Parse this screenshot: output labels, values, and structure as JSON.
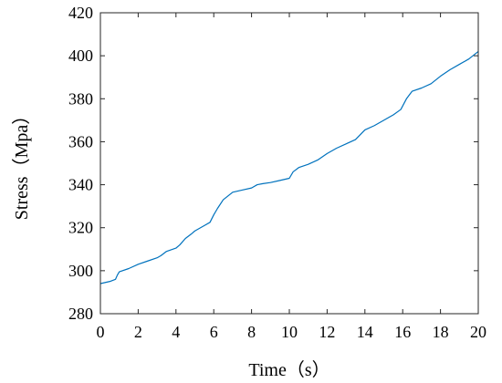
{
  "chart_data": {
    "type": "line",
    "title": "",
    "xlabel": "Time（s）",
    "ylabel": "Stress（Mpa）",
    "xlim": [
      0,
      20
    ],
    "ylim": [
      280,
      420
    ],
    "xticks": [
      0,
      2,
      4,
      6,
      8,
      10,
      12,
      14,
      16,
      18,
      20
    ],
    "yticks": [
      280,
      300,
      320,
      340,
      360,
      380,
      400,
      420
    ],
    "grid": false,
    "legend": "none",
    "series": [
      {
        "color": "#0072BD",
        "x": [
          0,
          0.5,
          0.8,
          0.9,
          1.0,
          1.5,
          2.0,
          2.5,
          3.0,
          3.2,
          3.5,
          4.0,
          4.2,
          4.5,
          4.8,
          5.0,
          5.5,
          5.8,
          6.0,
          6.2,
          6.5,
          7.0,
          7.5,
          8.0,
          8.3,
          8.6,
          9.0,
          9.5,
          10.0,
          10.2,
          10.5,
          11.0,
          11.5,
          12.0,
          12.5,
          13.0,
          13.5,
          14.0,
          14.5,
          15.0,
          15.5,
          15.9,
          16.2,
          16.5,
          17.0,
          17.5,
          18.0,
          18.5,
          19.0,
          19.5,
          20.0
        ],
        "values": [
          294,
          295,
          296,
          298,
          299.5,
          301,
          303,
          304.5,
          306,
          307,
          309,
          310.5,
          312,
          315,
          317,
          318.5,
          321,
          322.5,
          326,
          329,
          333,
          336.5,
          337.5,
          338.5,
          340,
          340.5,
          341,
          342,
          343,
          346,
          348,
          349.5,
          351.5,
          354.5,
          357,
          359,
          361,
          365.5,
          367.5,
          370,
          372.5,
          375,
          380,
          383.5,
          385,
          387,
          390.5,
          393.5,
          396,
          398.5,
          402
        ]
      }
    ]
  }
}
